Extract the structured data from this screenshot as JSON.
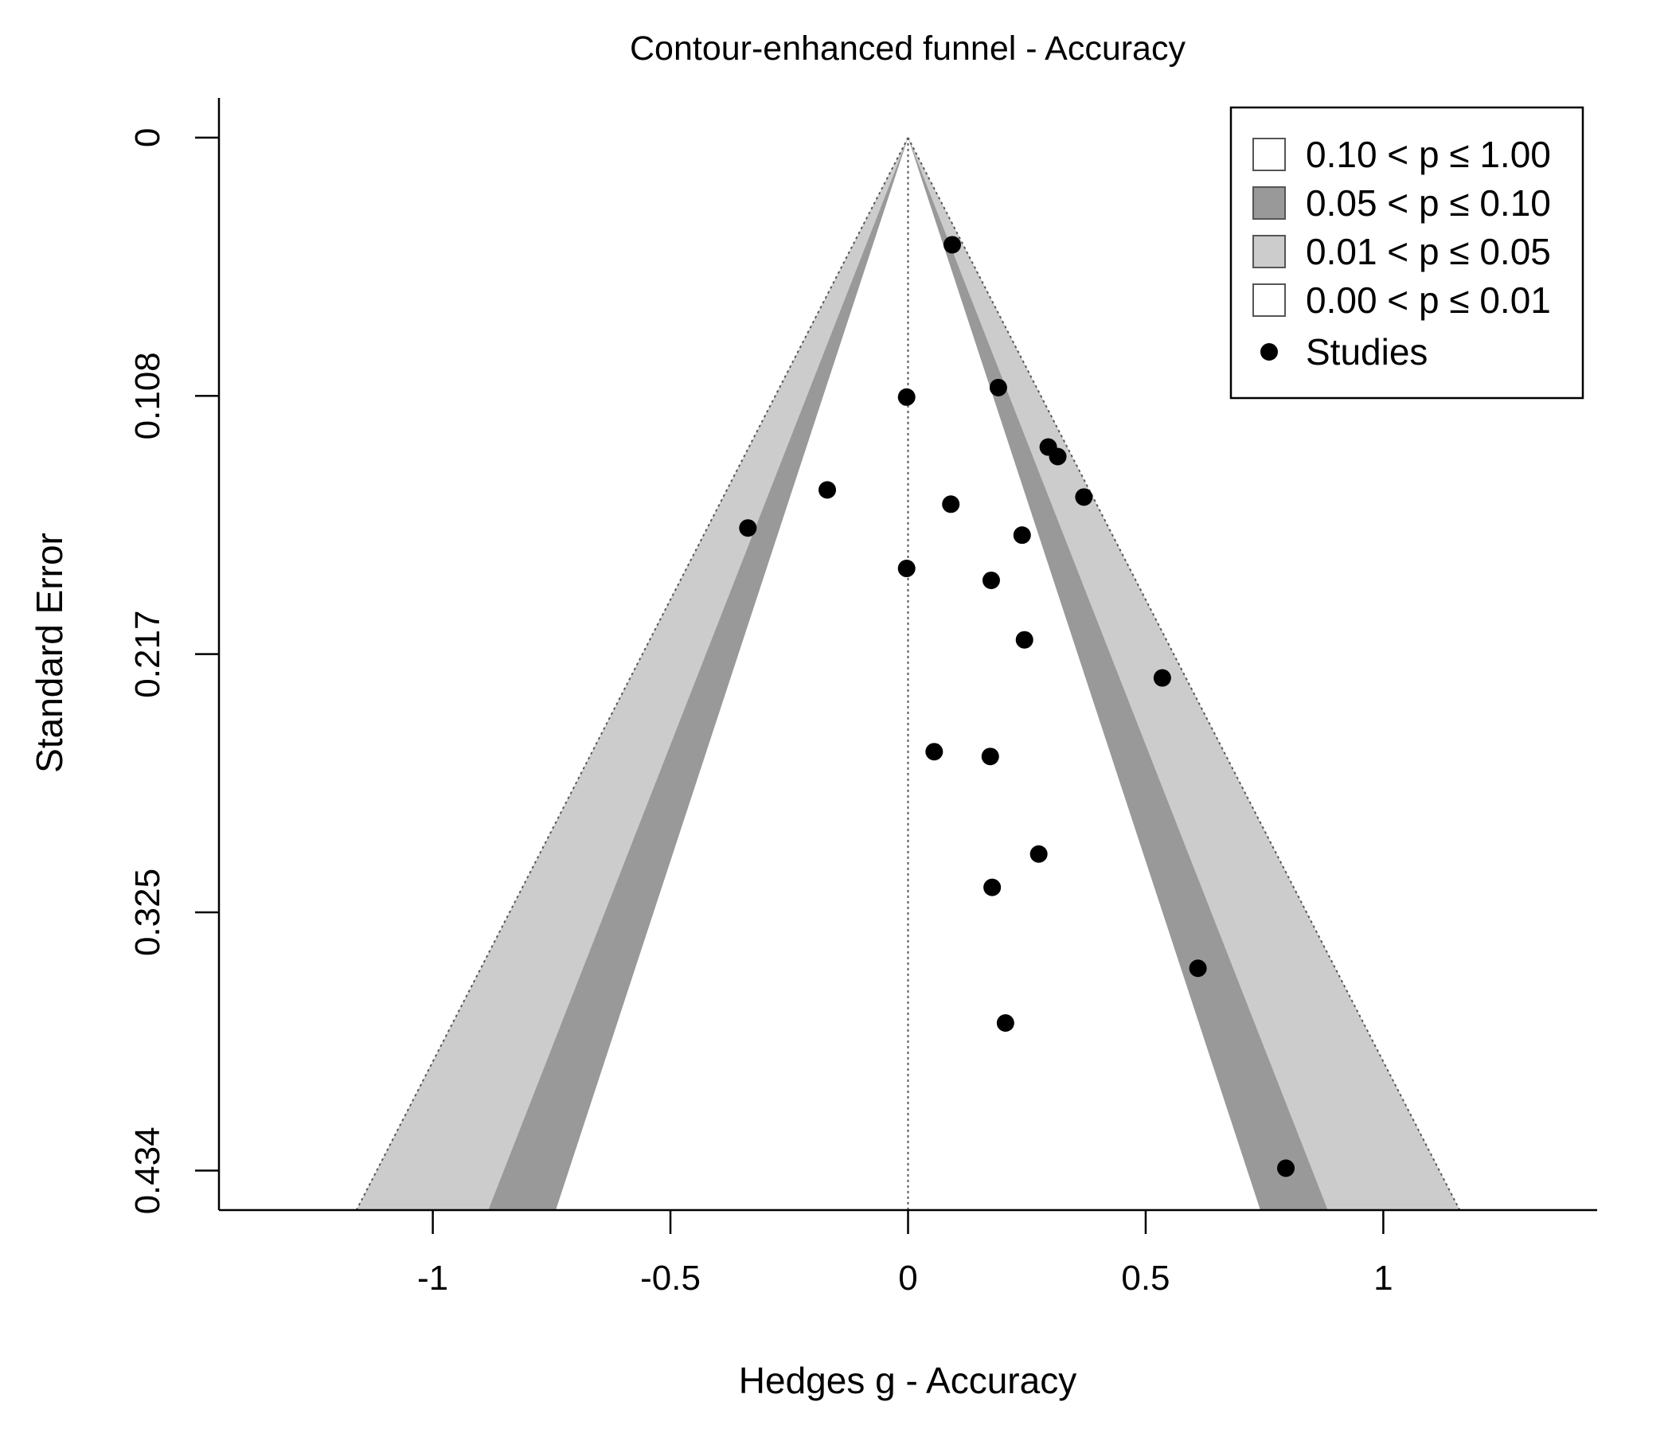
{
  "chart_data": {
    "type": "scatter",
    "title": "Contour-enhanced funnel - Accuracy",
    "xlabel": "Hedges g - Accuracy",
    "ylabel": "Standard Error",
    "xlim": [
      -1.45,
      1.45
    ],
    "ylim": [
      0.4506,
      -0.0167
    ],
    "y_inverted": true,
    "x_ticks": [
      {
        "value": -1,
        "label": "-1"
      },
      {
        "value": -0.5,
        "label": "-0.5"
      },
      {
        "value": 0,
        "label": "0"
      },
      {
        "value": 0.5,
        "label": "0.5"
      },
      {
        "value": 1,
        "label": "1"
      }
    ],
    "y_ticks": [
      {
        "value": 0,
        "label": "0"
      },
      {
        "value": 0.1085,
        "label": "0.108"
      },
      {
        "value": 0.217,
        "label": "0.217"
      },
      {
        "value": 0.3255,
        "label": "0.325"
      },
      {
        "value": 0.434,
        "label": "0.434"
      }
    ],
    "se_max_label": 0.434,
    "se_plot_max": 0.4506,
    "center_line": 0,
    "contours": [
      {
        "label": "0.10 < p ≤ 1.00",
        "z": 1.645,
        "color": "#ffffff"
      },
      {
        "label": "0.05 < p ≤ 0.10",
        "z": 1.96,
        "color": "#999999"
      },
      {
        "label": "0.01 < p ≤ 0.05",
        "z": 2.576,
        "color": "#cccccc"
      },
      {
        "label": "0.00 < p ≤ 0.01",
        "z": null,
        "color": "#ffffff"
      }
    ],
    "series": [
      {
        "name": "Studies",
        "points": [
          {
            "x": 0.093,
            "y": 0.045
          },
          {
            "x": 0.19,
            "y": 0.105
          },
          {
            "x": -0.003,
            "y": 0.109
          },
          {
            "x": 0.295,
            "y": 0.13
          },
          {
            "x": 0.315,
            "y": 0.134
          },
          {
            "x": -0.17,
            "y": 0.148
          },
          {
            "x": 0.09,
            "y": 0.154
          },
          {
            "x": 0.37,
            "y": 0.151
          },
          {
            "x": -0.337,
            "y": 0.164
          },
          {
            "x": 0.24,
            "y": 0.167
          },
          {
            "x": -0.003,
            "y": 0.181
          },
          {
            "x": 0.175,
            "y": 0.186
          },
          {
            "x": 0.245,
            "y": 0.211
          },
          {
            "x": 0.535,
            "y": 0.227
          },
          {
            "x": 0.055,
            "y": 0.258
          },
          {
            "x": 0.173,
            "y": 0.26
          },
          {
            "x": 0.275,
            "y": 0.301
          },
          {
            "x": 0.177,
            "y": 0.315
          },
          {
            "x": 0.61,
            "y": 0.349
          },
          {
            "x": 0.205,
            "y": 0.372
          },
          {
            "x": 0.795,
            "y": 0.433
          }
        ]
      }
    ],
    "legend": {
      "position": "top-right",
      "items": [
        {
          "label": "0.10 < p ≤ 1.00",
          "swatch": "#ffffff",
          "kind": "box"
        },
        {
          "label": "0.05 < p ≤ 0.10",
          "swatch": "#999999",
          "kind": "box"
        },
        {
          "label": "0.01 < p ≤ 0.05",
          "swatch": "#cccccc",
          "kind": "box"
        },
        {
          "label": "0.00 < p ≤ 0.01",
          "swatch": "#ffffff",
          "kind": "box"
        },
        {
          "label": "Studies",
          "swatch": "#000000",
          "kind": "point"
        }
      ]
    }
  }
}
